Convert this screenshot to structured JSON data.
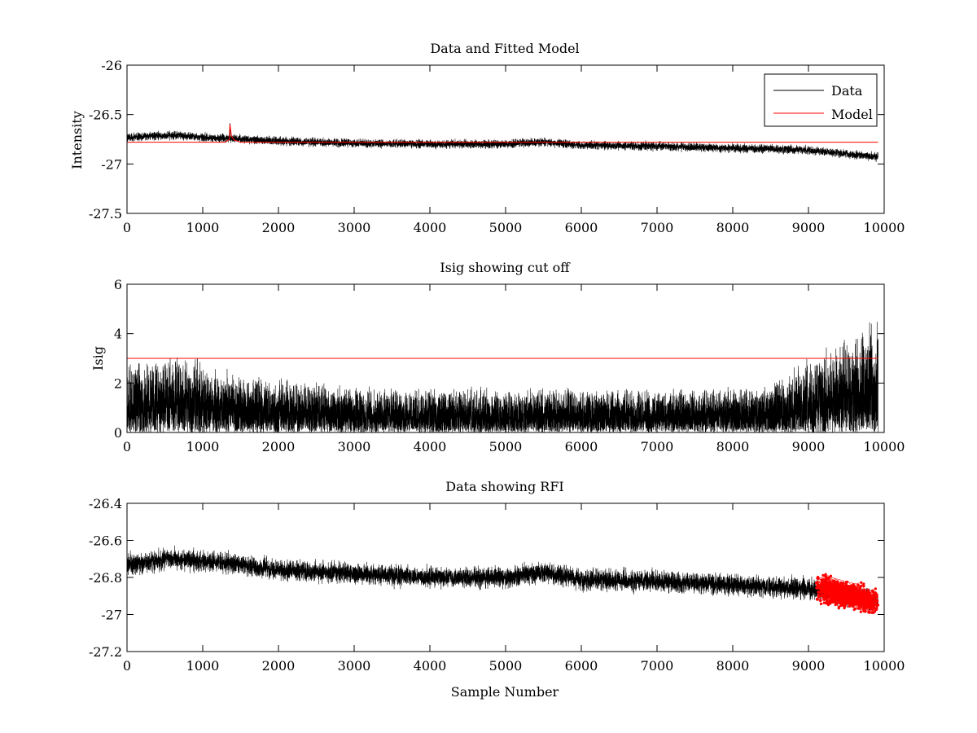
{
  "chart_data": [
    {
      "type": "line",
      "title": "Data and Fitted Model",
      "xlabel": "",
      "ylabel": "Intensity",
      "xlim": [
        0,
        10000
      ],
      "ylim": [
        -27.5,
        -26
      ],
      "xticks": [
        "0",
        "1000",
        "2000",
        "3000",
        "4000",
        "5000",
        "6000",
        "7000",
        "8000",
        "9000",
        "10000"
      ],
      "yticks": [
        "-27.5",
        "-27",
        "-26.5",
        "-26"
      ],
      "grid": false,
      "legend_position": "top-right",
      "series": [
        {
          "name": "Data",
          "color": "#000000",
          "style": "noisy-line",
          "n_points": 9920,
          "trend_x": [
            0,
            600,
            1300,
            2000,
            3000,
            4000,
            5000,
            5500,
            6000,
            7000,
            8000,
            9000,
            9920
          ],
          "trend_y": [
            -26.73,
            -26.71,
            -26.74,
            -26.77,
            -26.79,
            -26.8,
            -26.8,
            -26.78,
            -26.81,
            -26.82,
            -26.84,
            -26.86,
            -26.93
          ],
          "noise_amplitude": 0.035,
          "spike": {
            "x": 1360,
            "y": -26.6
          }
        },
        {
          "name": "Model",
          "color": "#ff0000",
          "style": "line",
          "x": [
            0,
            1300,
            1350,
            1360,
            1380,
            1420,
            1500,
            9920
          ],
          "y": [
            -26.78,
            -26.78,
            -26.75,
            -26.6,
            -26.72,
            -26.76,
            -26.78,
            -26.78
          ]
        }
      ]
    },
    {
      "type": "line",
      "title": "Isig showing cut off",
      "xlabel": "",
      "ylabel": "Isig",
      "xlim": [
        0,
        10000
      ],
      "ylim": [
        0,
        6
      ],
      "xticks": [
        "0",
        "1000",
        "2000",
        "3000",
        "4000",
        "5000",
        "6000",
        "7000",
        "8000",
        "9000",
        "10000"
      ],
      "yticks": [
        "0",
        "2",
        "4",
        "6"
      ],
      "grid": false,
      "series": [
        {
          "name": "",
          "color": "#000000",
          "style": "noisy-nonnegative",
          "n_points": 9920,
          "envelope_x": [
            0,
            800,
            1500,
            3000,
            5000,
            7000,
            8500,
            8800,
            9300,
            9920
          ],
          "envelope_y": [
            2.6,
            2.9,
            2.1,
            1.7,
            1.6,
            1.6,
            1.7,
            2.4,
            3.1,
            4.2
          ],
          "max_value": 4.7
        },
        {
          "name": "",
          "color": "#ff0000",
          "style": "line",
          "x": [
            0,
            9920
          ],
          "y": [
            3,
            3
          ]
        }
      ]
    },
    {
      "type": "line",
      "title": "Data showing RFI",
      "xlabel": "Sample Number",
      "ylabel": "",
      "xlim": [
        0,
        10000
      ],
      "ylim": [
        -27.2,
        -26.4
      ],
      "xticks": [
        "0",
        "1000",
        "2000",
        "3000",
        "4000",
        "5000",
        "6000",
        "7000",
        "8000",
        "9000",
        "10000"
      ],
      "yticks": [
        "-27.2",
        "-27",
        "-26.8",
        "-26.6",
        "-26.4"
      ],
      "grid": false,
      "series": [
        {
          "name": "",
          "color": "#000000",
          "style": "noisy-line",
          "n_points": 9920,
          "trend_x": [
            0,
            600,
            1300,
            2000,
            3000,
            4000,
            5000,
            5500,
            6000,
            7000,
            8000,
            9000,
            9920
          ],
          "trend_y": [
            -26.73,
            -26.7,
            -26.72,
            -26.76,
            -26.78,
            -26.8,
            -26.8,
            -26.77,
            -26.81,
            -26.82,
            -26.84,
            -26.86,
            -26.93
          ],
          "noise_amplitude": 0.045
        },
        {
          "name": "",
          "color": "#ff0000",
          "style": "markers",
          "x_range": [
            9100,
            9920
          ],
          "y_range": [
            -26.99,
            -26.76
          ]
        }
      ]
    }
  ]
}
